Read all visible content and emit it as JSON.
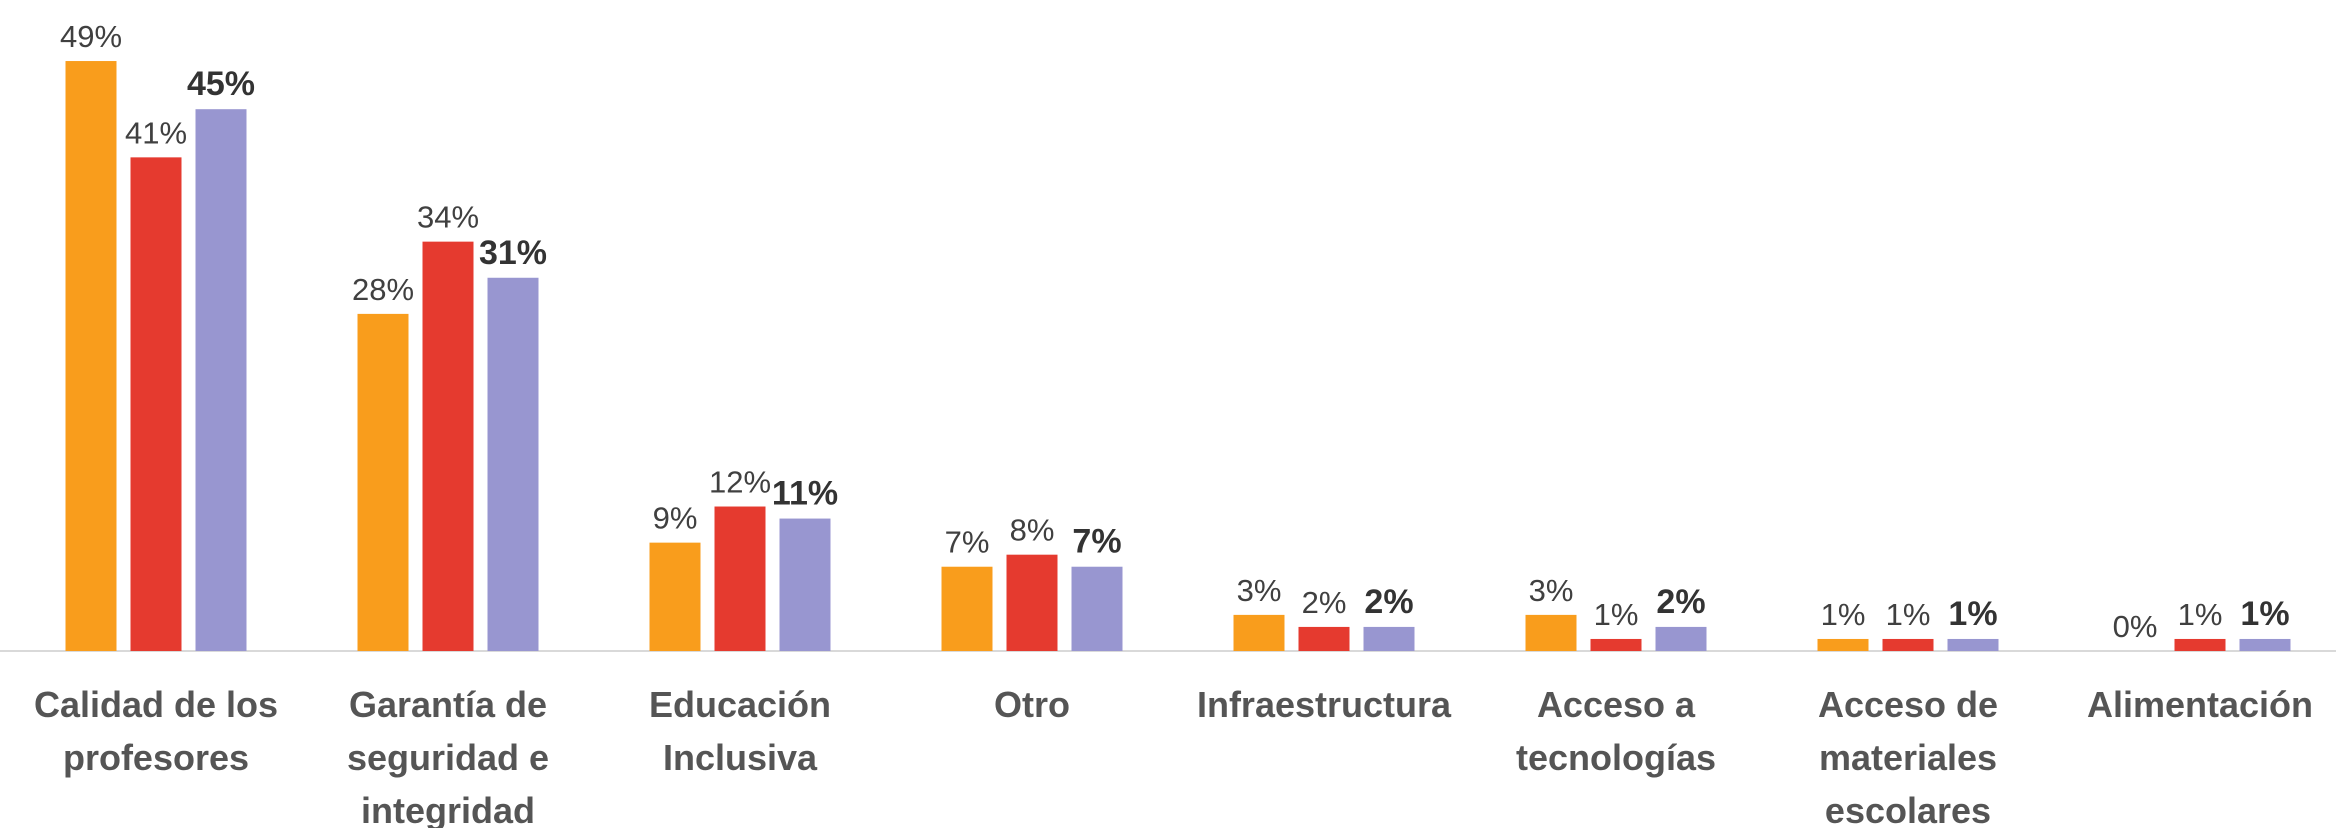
{
  "chart_data": {
    "type": "bar",
    "categories": [
      "Calidad de los profesores",
      "Garantía de seguridad e integridad",
      "Educación Inclusiva",
      "Otro",
      "Infraestructura",
      "Acceso a tecnologías",
      "Acceso de materiales escolares",
      "Alimentación"
    ],
    "series": [
      {
        "color": "#F99D1C",
        "values": [
          49,
          28,
          9,
          7,
          3,
          3,
          1,
          0
        ],
        "value_labels": [
          "49%",
          "28%",
          "9%",
          "7%",
          "3%",
          "3%",
          "1%",
          "0%"
        ]
      },
      {
        "color": "#E53A2F",
        "values": [
          41,
          34,
          12,
          8,
          2,
          1,
          1,
          1
        ],
        "value_labels": [
          "41%",
          "34%",
          "12%",
          "8%",
          "2%",
          "1%",
          "1%",
          "1%"
        ]
      },
      {
        "color": "#9896D0",
        "values": [
          45,
          31,
          11,
          7,
          2,
          2,
          1,
          1
        ],
        "value_labels": [
          "45%",
          "31%",
          "11%",
          "7%",
          "2%",
          "2%",
          "1%",
          "1%"
        ]
      }
    ],
    "ylim": [
      0,
      50
    ]
  }
}
